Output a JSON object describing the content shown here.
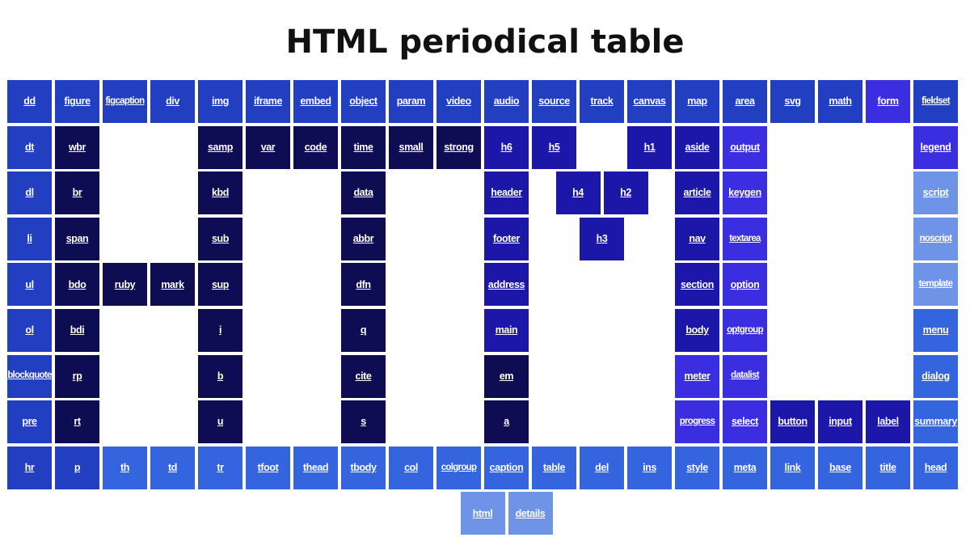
{
  "title": "HTML periodical table",
  "colors": {
    "navy": "#0e0c52",
    "indigo": "#1c17a8",
    "royal": "#223fc1",
    "violet": "#3b2ee0",
    "blue": "#3564df",
    "light": "#6f93e6"
  },
  "elements": [
    {
      "label": "dd",
      "row": 0,
      "col": 0,
      "color": "royal"
    },
    {
      "label": "figure",
      "row": 0,
      "col": 1,
      "color": "royal"
    },
    {
      "label": "figcaption",
      "row": 0,
      "col": 2,
      "color": "royal"
    },
    {
      "label": "div",
      "row": 0,
      "col": 3,
      "color": "royal"
    },
    {
      "label": "img",
      "row": 0,
      "col": 4,
      "color": "royal"
    },
    {
      "label": "iframe",
      "row": 0,
      "col": 5,
      "color": "royal"
    },
    {
      "label": "embed",
      "row": 0,
      "col": 6,
      "color": "royal"
    },
    {
      "label": "object",
      "row": 0,
      "col": 7,
      "color": "royal"
    },
    {
      "label": "param",
      "row": 0,
      "col": 8,
      "color": "royal"
    },
    {
      "label": "video",
      "row": 0,
      "col": 9,
      "color": "royal"
    },
    {
      "label": "audio",
      "row": 0,
      "col": 10,
      "color": "royal"
    },
    {
      "label": "source",
      "row": 0,
      "col": 11,
      "color": "royal"
    },
    {
      "label": "track",
      "row": 0,
      "col": 12,
      "color": "royal"
    },
    {
      "label": "canvas",
      "row": 0,
      "col": 13,
      "color": "royal"
    },
    {
      "label": "map",
      "row": 0,
      "col": 14,
      "color": "royal"
    },
    {
      "label": "area",
      "row": 0,
      "col": 15,
      "color": "royal"
    },
    {
      "label": "svg",
      "row": 0,
      "col": 16,
      "color": "royal"
    },
    {
      "label": "math",
      "row": 0,
      "col": 17,
      "color": "royal"
    },
    {
      "label": "form",
      "row": 0,
      "col": 18,
      "color": "violet"
    },
    {
      "label": "fieldset",
      "row": 0,
      "col": 19,
      "color": "royal"
    },
    {
      "label": "dt",
      "row": 1,
      "col": 0,
      "color": "royal"
    },
    {
      "label": "wbr",
      "row": 1,
      "col": 1,
      "color": "navy"
    },
    {
      "label": "samp",
      "row": 1,
      "col": 4,
      "color": "navy"
    },
    {
      "label": "var",
      "row": 1,
      "col": 5,
      "color": "navy"
    },
    {
      "label": "code",
      "row": 1,
      "col": 6,
      "color": "navy"
    },
    {
      "label": "time",
      "row": 1,
      "col": 7,
      "color": "navy"
    },
    {
      "label": "small",
      "row": 1,
      "col": 8,
      "color": "navy"
    },
    {
      "label": "strong",
      "row": 1,
      "col": 9,
      "color": "navy"
    },
    {
      "label": "h6",
      "row": 1,
      "col": 10,
      "color": "indigo"
    },
    {
      "label": "h5",
      "row": 1,
      "col": 11,
      "color": "indigo"
    },
    {
      "label": "h1",
      "row": 1,
      "col": 13,
      "color": "indigo"
    },
    {
      "label": "aside",
      "row": 1,
      "col": 14,
      "color": "indigo"
    },
    {
      "label": "output",
      "row": 1,
      "col": 15,
      "color": "violet"
    },
    {
      "label": "legend",
      "row": 1,
      "col": 19,
      "color": "violet"
    },
    {
      "label": "dl",
      "row": 2,
      "col": 0,
      "color": "royal"
    },
    {
      "label": "br",
      "row": 2,
      "col": 1,
      "color": "navy"
    },
    {
      "label": "kbd",
      "row": 2,
      "col": 4,
      "color": "navy"
    },
    {
      "label": "data",
      "row": 2,
      "col": 7,
      "color": "navy"
    },
    {
      "label": "header",
      "row": 2,
      "col": 10,
      "color": "indigo"
    },
    {
      "label": "h4",
      "row": 2,
      "col": 11.5,
      "color": "indigo"
    },
    {
      "label": "h2",
      "row": 2,
      "col": 12.5,
      "color": "indigo"
    },
    {
      "label": "article",
      "row": 2,
      "col": 14,
      "color": "indigo"
    },
    {
      "label": "keygen",
      "row": 2,
      "col": 15,
      "color": "violet"
    },
    {
      "label": "script",
      "row": 2,
      "col": 19,
      "color": "light"
    },
    {
      "label": "li",
      "row": 3,
      "col": 0,
      "color": "royal"
    },
    {
      "label": "span",
      "row": 3,
      "col": 1,
      "color": "navy"
    },
    {
      "label": "sub",
      "row": 3,
      "col": 4,
      "color": "navy"
    },
    {
      "label": "abbr",
      "row": 3,
      "col": 7,
      "color": "navy"
    },
    {
      "label": "footer",
      "row": 3,
      "col": 10,
      "color": "indigo"
    },
    {
      "label": "h3",
      "row": 3,
      "col": 12,
      "color": "indigo"
    },
    {
      "label": "nav",
      "row": 3,
      "col": 14,
      "color": "indigo"
    },
    {
      "label": "textarea",
      "row": 3,
      "col": 15,
      "color": "violet"
    },
    {
      "label": "noscript",
      "row": 3,
      "col": 19,
      "color": "light"
    },
    {
      "label": "ul",
      "row": 4,
      "col": 0,
      "color": "royal"
    },
    {
      "label": "bdo",
      "row": 4,
      "col": 1,
      "color": "navy"
    },
    {
      "label": "ruby",
      "row": 4,
      "col": 2,
      "color": "navy"
    },
    {
      "label": "mark",
      "row": 4,
      "col": 3,
      "color": "navy"
    },
    {
      "label": "sup",
      "row": 4,
      "col": 4,
      "color": "navy"
    },
    {
      "label": "dfn",
      "row": 4,
      "col": 7,
      "color": "navy"
    },
    {
      "label": "address",
      "row": 4,
      "col": 10,
      "color": "indigo"
    },
    {
      "label": "section",
      "row": 4,
      "col": 14,
      "color": "indigo"
    },
    {
      "label": "option",
      "row": 4,
      "col": 15,
      "color": "violet"
    },
    {
      "label": "template",
      "row": 4,
      "col": 19,
      "color": "light"
    },
    {
      "label": "ol",
      "row": 5,
      "col": 0,
      "color": "royal"
    },
    {
      "label": "bdi",
      "row": 5,
      "col": 1,
      "color": "navy"
    },
    {
      "label": "i",
      "row": 5,
      "col": 4,
      "color": "navy"
    },
    {
      "label": "q",
      "row": 5,
      "col": 7,
      "color": "navy"
    },
    {
      "label": "main",
      "row": 5,
      "col": 10,
      "color": "indigo"
    },
    {
      "label": "body",
      "row": 5,
      "col": 14,
      "color": "indigo"
    },
    {
      "label": "optgroup",
      "row": 5,
      "col": 15,
      "color": "violet"
    },
    {
      "label": "menu",
      "row": 5,
      "col": 19,
      "color": "blue"
    },
    {
      "label": "blockquote",
      "row": 6,
      "col": 0,
      "color": "royal"
    },
    {
      "label": "rp",
      "row": 6,
      "col": 1,
      "color": "navy"
    },
    {
      "label": "b",
      "row": 6,
      "col": 4,
      "color": "navy"
    },
    {
      "label": "cite",
      "row": 6,
      "col": 7,
      "color": "navy"
    },
    {
      "label": "em",
      "row": 6,
      "col": 10,
      "color": "navy"
    },
    {
      "label": "meter",
      "row": 6,
      "col": 14,
      "color": "violet"
    },
    {
      "label": "datalist",
      "row": 6,
      "col": 15,
      "color": "violet"
    },
    {
      "label": "dialog",
      "row": 6,
      "col": 19,
      "color": "blue"
    },
    {
      "label": "pre",
      "row": 7,
      "col": 0,
      "color": "royal"
    },
    {
      "label": "rt",
      "row": 7,
      "col": 1,
      "color": "navy"
    },
    {
      "label": "u",
      "row": 7,
      "col": 4,
      "color": "navy"
    },
    {
      "label": "s",
      "row": 7,
      "col": 7,
      "color": "navy"
    },
    {
      "label": "a",
      "row": 7,
      "col": 10,
      "color": "navy"
    },
    {
      "label": "progress",
      "row": 7,
      "col": 14,
      "color": "violet"
    },
    {
      "label": "select",
      "row": 7,
      "col": 15,
      "color": "violet"
    },
    {
      "label": "button",
      "row": 7,
      "col": 16,
      "color": "indigo"
    },
    {
      "label": "input",
      "row": 7,
      "col": 17,
      "color": "indigo"
    },
    {
      "label": "label",
      "row": 7,
      "col": 18,
      "color": "indigo"
    },
    {
      "label": "summary",
      "row": 7,
      "col": 19,
      "color": "blue"
    },
    {
      "label": "hr",
      "row": 8,
      "col": 0,
      "color": "royal"
    },
    {
      "label": "p",
      "row": 8,
      "col": 1,
      "color": "royal"
    },
    {
      "label": "th",
      "row": 8,
      "col": 2,
      "color": "blue"
    },
    {
      "label": "td",
      "row": 8,
      "col": 3,
      "color": "blue"
    },
    {
      "label": "tr",
      "row": 8,
      "col": 4,
      "color": "blue"
    },
    {
      "label": "tfoot",
      "row": 8,
      "col": 5,
      "color": "blue"
    },
    {
      "label": "thead",
      "row": 8,
      "col": 6,
      "color": "blue"
    },
    {
      "label": "tbody",
      "row": 8,
      "col": 7,
      "color": "blue"
    },
    {
      "label": "col",
      "row": 8,
      "col": 8,
      "color": "blue"
    },
    {
      "label": "colgroup",
      "row": 8,
      "col": 9,
      "color": "blue"
    },
    {
      "label": "caption",
      "row": 8,
      "col": 10,
      "color": "blue"
    },
    {
      "label": "table",
      "row": 8,
      "col": 11,
      "color": "blue"
    },
    {
      "label": "del",
      "row": 8,
      "col": 12,
      "color": "blue"
    },
    {
      "label": "ins",
      "row": 8,
      "col": 13,
      "color": "blue"
    },
    {
      "label": "style",
      "row": 8,
      "col": 14,
      "color": "blue"
    },
    {
      "label": "meta",
      "row": 8,
      "col": 15,
      "color": "blue"
    },
    {
      "label": "link",
      "row": 8,
      "col": 16,
      "color": "blue"
    },
    {
      "label": "base",
      "row": 8,
      "col": 17,
      "color": "blue"
    },
    {
      "label": "title",
      "row": 8,
      "col": 18,
      "color": "blue"
    },
    {
      "label": "head",
      "row": 8,
      "col": 19,
      "color": "blue"
    },
    {
      "label": "html",
      "row": 9,
      "col": 9.5,
      "color": "light"
    },
    {
      "label": "details",
      "row": 9,
      "col": 10.5,
      "color": "light"
    }
  ]
}
